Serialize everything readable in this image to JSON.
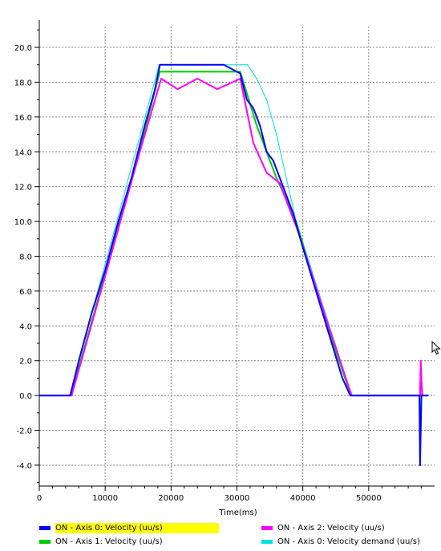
{
  "chart_data": {
    "type": "line",
    "xlabel": "Time(ms)",
    "ylabel": "",
    "xlim": [
      0,
      60000
    ],
    "ylim": [
      -5.2,
      21.2
    ],
    "grid": true,
    "x_ticks": [
      0,
      10000,
      20000,
      30000,
      40000,
      50000
    ],
    "x_tick_labels": [
      "0",
      "10000",
      "20000",
      "30000",
      "40000",
      "50000"
    ],
    "y_ticks": [
      -4,
      -2,
      0,
      2,
      4,
      6,
      8,
      10,
      12,
      14,
      16,
      18,
      20
    ],
    "y_tick_labels": [
      "-4.0",
      "-2.0",
      "0.0",
      "2.0",
      "4.0",
      "6.0",
      "8.0",
      "10.0",
      "12.0",
      "14.0",
      "16.0",
      "18.0",
      "20.0"
    ],
    "series": [
      {
        "name": "Axis 0: Velocity demand (uu/s)",
        "legend_label": "ON  - Axis 0: Velocity demand (uu/s)",
        "color": "#00e0e0",
        "x": [
          0,
          4600,
          18200,
          30600,
          31600,
          33000,
          34500,
          36000,
          39000,
          47400,
          57700,
          58100,
          59000
        ],
        "y": [
          0,
          0,
          19,
          19,
          19,
          18.2,
          17,
          15,
          10,
          0,
          0,
          0,
          0
        ]
      },
      {
        "name": "Axis 1: Velocity (uu/s)",
        "legend_label": "ON  - Axis 1: Velocity (uu/s)",
        "color": "#00cc00",
        "x": [
          0,
          4800,
          10000,
          15000,
          18300,
          22000,
          26000,
          30500,
          33000,
          36000,
          39000,
          43000,
          47300,
          57800,
          57900,
          58200,
          59000
        ],
        "y": [
          0,
          0,
          7,
          13.8,
          18.6,
          18.6,
          18.6,
          18.6,
          15.5,
          12.5,
          10,
          4.8,
          0,
          0,
          1.2,
          0,
          0
        ]
      },
      {
        "name": "Axis 2: Velocity (uu/s)",
        "legend_label": "ON  - Axis 2: Velocity (uu/s)",
        "color": "#ff00ff",
        "x": [
          0,
          4900,
          10100,
          15100,
          18500,
          21000,
          24000,
          27000,
          30500,
          32500,
          34500,
          36500,
          39200,
          43200,
          47400,
          57800,
          57900,
          58100,
          59000
        ],
        "y": [
          0,
          0,
          7,
          13.8,
          18.2,
          17.6,
          18.2,
          17.6,
          18.2,
          14.5,
          12.8,
          12.2,
          9.5,
          4.8,
          0,
          0,
          2,
          0,
          0
        ]
      },
      {
        "name": "Axis 0: Velocity (uu/s)",
        "legend_label": "ON  - Axis 0: Velocity (uu/s)",
        "color": "#0000ff",
        "x": [
          0,
          4700,
          6000,
          8000,
          10000,
          12000,
          14000,
          16000,
          17500,
          18300,
          20000,
          22000,
          24000,
          26000,
          28000,
          30500,
          31500,
          32500,
          33500,
          34500,
          35500,
          36500,
          37500,
          38500,
          40000,
          42000,
          44000,
          46000,
          47200,
          57700,
          57800,
          58000,
          59000
        ],
        "y": [
          0,
          0,
          2,
          4.8,
          7.2,
          10,
          12.5,
          15.5,
          17.5,
          19,
          19,
          19,
          19,
          19,
          19,
          18.5,
          17,
          16.5,
          15.5,
          14,
          13.5,
          12.5,
          11.5,
          10.5,
          8.5,
          6,
          3.5,
          1,
          0,
          0,
          -4,
          0,
          0
        ]
      }
    ],
    "legend_placement": "bottom",
    "legend_highlighted_series": "Axis 0: Velocity (uu/s)",
    "legend_highlight_color": "#ffff00"
  },
  "icons": {
    "cursor": "mouse-pointer-icon"
  }
}
